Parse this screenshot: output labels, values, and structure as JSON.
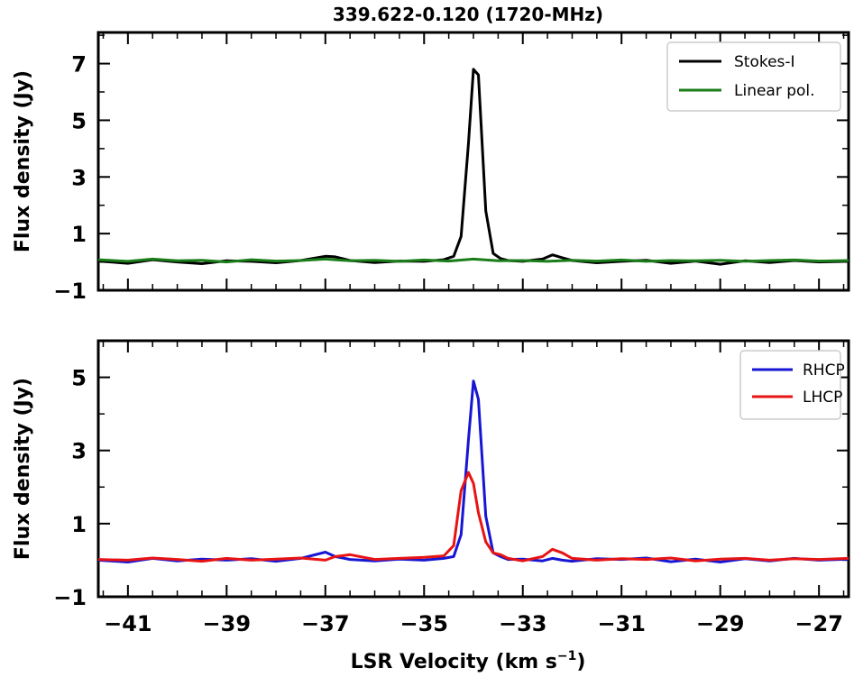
{
  "chart_data": {
    "title": "339.622-0.120 (1720-MHz)",
    "xlabel": "LSR Velocity (km s",
    "xlabel_sup": "−1",
    "xlabel_close": ")",
    "xlim": [
      -41.6,
      -26.4
    ],
    "xticks": [
      -41,
      -39,
      -37,
      -35,
      -33,
      -31,
      -29,
      -27
    ],
    "xtick_labels": [
      "−41",
      "−39",
      "−37",
      "−35",
      "−33",
      "−31",
      "−29",
      "−27"
    ],
    "grid": false,
    "panels": [
      {
        "type": "line",
        "ylabel": "Flux density (Jy)",
        "ylim": [
          -1,
          8.1
        ],
        "yticks": [
          -1,
          1,
          3,
          5,
          7
        ],
        "ytick_labels": [
          "−1",
          "1",
          "3",
          "5",
          "7"
        ],
        "legend_position": "top-right",
        "series": [
          {
            "name": "Stokes-I",
            "color": "#000000",
            "x": [
              -41.6,
              -41.0,
              -40.5,
              -40.0,
              -39.5,
              -39.0,
              -38.5,
              -38.0,
              -37.5,
              -37.0,
              -36.8,
              -36.5,
              -36.0,
              -35.5,
              -35.0,
              -34.6,
              -34.4,
              -34.25,
              -34.1,
              -34.0,
              -33.9,
              -33.75,
              -33.6,
              -33.45,
              -33.3,
              -33.0,
              -32.6,
              -32.4,
              -32.2,
              -32.0,
              -31.5,
              -31.0,
              -30.5,
              -30.0,
              -29.5,
              -29.0,
              -28.5,
              -28.0,
              -27.5,
              -27.0,
              -26.4
            ],
            "y": [
              0.03,
              -0.05,
              0.08,
              0.0,
              -0.06,
              0.04,
              0.02,
              -0.03,
              0.05,
              0.2,
              0.18,
              0.05,
              -0.02,
              0.03,
              0.02,
              0.08,
              0.2,
              0.9,
              4.2,
              6.8,
              6.6,
              1.8,
              0.3,
              0.12,
              0.05,
              0.02,
              0.1,
              0.25,
              0.15,
              0.05,
              -0.03,
              0.02,
              0.06,
              -0.05,
              0.03,
              -0.08,
              0.04,
              -0.02,
              0.05,
              0.0,
              0.02
            ]
          },
          {
            "name": "Linear pol.",
            "color": "#1a7d1a",
            "x": [
              -41.6,
              -41.0,
              -40.5,
              -40.0,
              -39.5,
              -39.0,
              -38.5,
              -38.0,
              -37.5,
              -37.0,
              -36.5,
              -36.0,
              -35.5,
              -35.0,
              -34.5,
              -34.0,
              -33.5,
              -33.0,
              -32.5,
              -32.0,
              -31.5,
              -31.0,
              -30.5,
              -30.0,
              -29.5,
              -29.0,
              -28.5,
              -28.0,
              -27.5,
              -27.0,
              -26.4
            ],
            "y": [
              0.08,
              0.02,
              0.1,
              0.04,
              0.06,
              0.0,
              0.08,
              0.03,
              0.05,
              0.1,
              0.04,
              0.06,
              0.02,
              0.07,
              0.03,
              0.1,
              0.04,
              0.05,
              0.02,
              0.06,
              0.03,
              0.07,
              0.02,
              0.05,
              0.04,
              0.06,
              0.02,
              0.05,
              0.07,
              0.03,
              0.05
            ]
          }
        ]
      },
      {
        "type": "line",
        "ylabel": "Flux density (Jy)",
        "ylim": [
          -1,
          6.0
        ],
        "yticks": [
          -1,
          1,
          3,
          5
        ],
        "ytick_labels": [
          "−1",
          "1",
          "3",
          "5"
        ],
        "legend_position": "top-right",
        "series": [
          {
            "name": "RHCP",
            "color": "#1616d4",
            "x": [
              -41.6,
              -41.0,
              -40.5,
              -40.0,
              -39.5,
              -39.0,
              -38.5,
              -38.0,
              -37.5,
              -37.0,
              -36.8,
              -36.5,
              -36.0,
              -35.5,
              -35.0,
              -34.6,
              -34.4,
              -34.25,
              -34.1,
              -34.0,
              -33.9,
              -33.75,
              -33.6,
              -33.45,
              -33.3,
              -33.0,
              -32.6,
              -32.4,
              -32.2,
              -32.0,
              -31.5,
              -31.0,
              -30.5,
              -30.0,
              -29.5,
              -29.0,
              -28.5,
              -28.0,
              -27.5,
              -27.0,
              -26.4
            ],
            "y": [
              0.0,
              -0.05,
              0.05,
              -0.02,
              0.03,
              0.0,
              0.04,
              -0.03,
              0.05,
              0.22,
              0.1,
              0.02,
              -0.02,
              0.03,
              0.0,
              0.05,
              0.1,
              0.7,
              3.3,
              4.9,
              4.4,
              1.2,
              0.2,
              0.1,
              0.02,
              0.03,
              -0.02,
              0.05,
              0.0,
              -0.03,
              0.04,
              0.02,
              0.06,
              -0.04,
              0.03,
              -0.05,
              0.04,
              -0.02,
              0.05,
              0.0,
              0.03
            ]
          },
          {
            "name": "LHCP",
            "color": "#e81414",
            "x": [
              -41.6,
              -41.0,
              -40.5,
              -40.0,
              -39.5,
              -39.0,
              -38.5,
              -38.0,
              -37.5,
              -37.0,
              -36.8,
              -36.5,
              -36.0,
              -35.5,
              -35.0,
              -34.6,
              -34.4,
              -34.25,
              -34.1,
              -34.0,
              -33.9,
              -33.75,
              -33.6,
              -33.45,
              -33.3,
              -33.0,
              -32.6,
              -32.4,
              -32.2,
              -32.0,
              -31.5,
              -31.0,
              -30.5,
              -30.0,
              -29.5,
              -29.0,
              -28.5,
              -28.0,
              -27.5,
              -27.0,
              -26.4
            ],
            "y": [
              0.02,
              0.0,
              0.06,
              0.02,
              -0.03,
              0.05,
              0.0,
              0.03,
              0.06,
              0.0,
              0.1,
              0.15,
              0.02,
              0.05,
              0.08,
              0.12,
              0.4,
              1.9,
              2.4,
              2.1,
              1.3,
              0.5,
              0.2,
              0.15,
              0.05,
              -0.02,
              0.1,
              0.3,
              0.2,
              0.05,
              0.0,
              0.04,
              0.02,
              0.06,
              -0.02,
              0.03,
              0.05,
              0.0,
              0.04,
              0.02,
              0.05
            ]
          }
        ]
      }
    ]
  }
}
